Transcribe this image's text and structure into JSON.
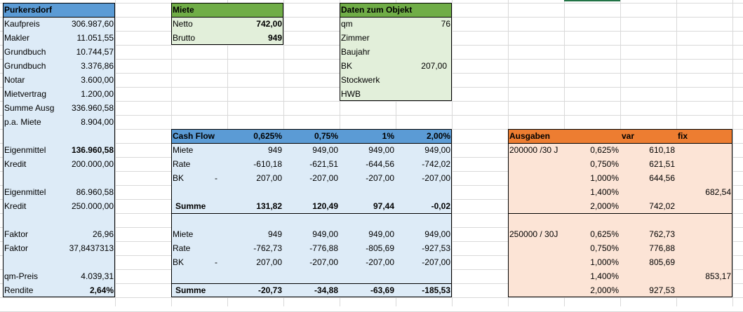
{
  "colors": {
    "blue_header": "#5b9bd5",
    "blue_fill": "#ddebf7",
    "green_header": "#70ad47",
    "green_fill": "#e2efda",
    "orange_header": "#ed7d31",
    "orange_fill": "#fce4d6",
    "grid": "#d9d9d9"
  },
  "purkersdorf": {
    "title": "Purkersdorf",
    "rows": [
      {
        "label": "Kaufpreis",
        "value": "306.987,60"
      },
      {
        "label": "Makler",
        "value": "11.051,55"
      },
      {
        "label": "Grundbuch",
        "value": "10.744,57"
      },
      {
        "label": "Grundbuch",
        "value": "3.376,86"
      },
      {
        "label": "Notar",
        "value": "3.600,00"
      },
      {
        "label": "Mietvertrag",
        "value": "1.200,00"
      },
      {
        "label": "Summe Ausg",
        "value": "336.960,58"
      },
      {
        "label": "p.a. Miete",
        "value": "8.904,00"
      },
      {
        "label": "Eigenmittel",
        "value": "136.960,58",
        "bold_value": true
      },
      {
        "label": "Kredit",
        "value": "200.000,00"
      },
      {
        "label": "Eigenmittel",
        "value": "86.960,58"
      },
      {
        "label": "Kredit",
        "value": "250.000,00"
      },
      {
        "label": "Faktor",
        "value": "26,96"
      },
      {
        "label": "Faktor",
        "value": "37,8437313"
      },
      {
        "label": "qm-Preis",
        "value": "4.039,31"
      },
      {
        "label": "Rendite",
        "value": "2,64%",
        "bold_value": true
      }
    ]
  },
  "miete": {
    "title": "Miete",
    "rows": [
      {
        "label": "Netto",
        "value": "742,00"
      },
      {
        "label": "Brutto",
        "value": "949"
      }
    ]
  },
  "objekt": {
    "title": "Daten zum Objekt",
    "rows": [
      {
        "label": "qm",
        "value": "76"
      },
      {
        "label": "Zimmer",
        "value": ""
      },
      {
        "label": "Baujahr",
        "value": ""
      },
      {
        "label": "BK",
        "value": "207,00"
      },
      {
        "label": "Stockwerk",
        "value": ""
      },
      {
        "label": "HWB",
        "value": ""
      }
    ]
  },
  "cashflow": {
    "headers": [
      "Cash Flow",
      "0,625%",
      "0,75%",
      "1%",
      "2,00%"
    ],
    "block1": [
      {
        "label": "Miete",
        "dash": "",
        "v": [
          "949",
          "949,00",
          "949,00",
          "949,00"
        ]
      },
      {
        "label": "Rate",
        "dash": "",
        "v": [
          "-610,18",
          "-621,51",
          "-644,56",
          "-742,02"
        ]
      },
      {
        "label": "BK",
        "dash": "-",
        "v": [
          "207,00",
          "-207,00",
          "-207,00",
          "-207,00"
        ]
      }
    ],
    "sum1": {
      "label": "Summe",
      "v": [
        "131,82",
        "120,49",
        "97,44",
        "-0,02"
      ]
    },
    "block2": [
      {
        "label": "Miete",
        "dash": "",
        "v": [
          "949",
          "949,00",
          "949,00",
          "949,00"
        ]
      },
      {
        "label": "Rate",
        "dash": "",
        "v": [
          "-762,73",
          "-776,88",
          "-805,69",
          "-927,53"
        ]
      },
      {
        "label": "BK",
        "dash": "-",
        "v": [
          "207,00",
          "-207,00",
          "-207,00",
          "-207,00"
        ]
      }
    ],
    "sum2": {
      "label": "Summe",
      "v": [
        "-20,73",
        "-34,88",
        "-63,69",
        "-185,53"
      ]
    }
  },
  "ausgaben": {
    "headers": [
      "Ausgaben",
      "var",
      "fix"
    ],
    "block1": {
      "label": "200000 /30 J",
      "rows": [
        {
          "pct": "0,625%",
          "var": "610,18",
          "fix": ""
        },
        {
          "pct": "0,750%",
          "var": "621,51",
          "fix": ""
        },
        {
          "pct": "1,000%",
          "var": "644,56",
          "fix": ""
        },
        {
          "pct": "1,400%",
          "var": "",
          "fix": "682,54"
        },
        {
          "pct": "2,000%",
          "var": "742,02",
          "fix": ""
        }
      ]
    },
    "block2": {
      "label": "250000 / 30J",
      "rows": [
        {
          "pct": "0,625%",
          "var": "762,73",
          "fix": ""
        },
        {
          "pct": "0,750%",
          "var": "776,88",
          "fix": ""
        },
        {
          "pct": "1,000%",
          "var": "805,69",
          "fix": ""
        },
        {
          "pct": "1,400%",
          "var": "",
          "fix": "853,17"
        },
        {
          "pct": "2,000%",
          "var": "927,53",
          "fix": ""
        }
      ]
    }
  }
}
